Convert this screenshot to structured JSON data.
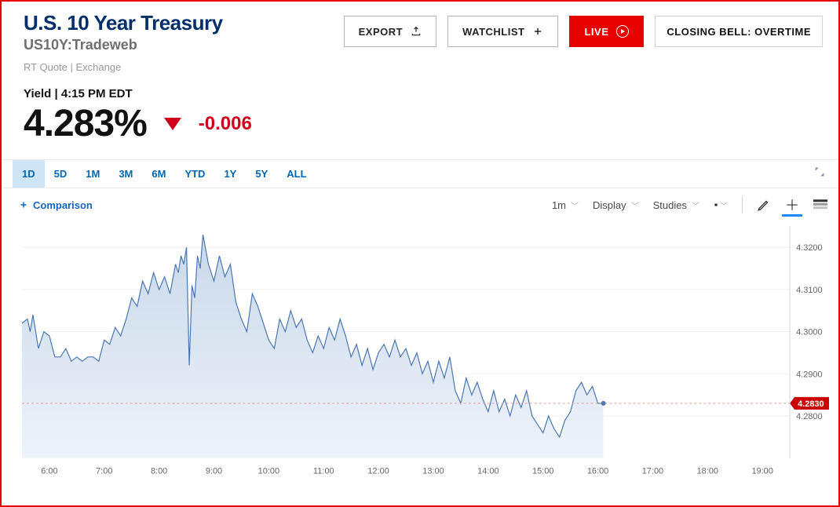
{
  "header": {
    "title": "U.S. 10 Year Treasury",
    "subtitle": "US10Y:Tradeweb",
    "meta": "RT Quote | Exchange"
  },
  "buttons": {
    "export": "EXPORT",
    "watchlist": "WATCHLIST",
    "live": "LIVE",
    "banner": "CLOSING BELL: OVERTIME"
  },
  "yield": {
    "label": "Yield | 4:15 PM EDT",
    "value": "4.283%",
    "delta": "-0.006",
    "direction": "down",
    "delta_color": "#d0021b"
  },
  "ranges": [
    "1D",
    "5D",
    "1M",
    "3M",
    "6M",
    "YTD",
    "1Y",
    "5Y",
    "ALL"
  ],
  "range_active": 0,
  "toolbar": {
    "comparison": "Comparison",
    "interval": "1m",
    "display": "Display",
    "studies": "Studies"
  },
  "chart": {
    "type": "area",
    "line_color": "#4a77b4",
    "fill_top": "#c9d8ea",
    "fill_bottom": "#eef3fa",
    "grid_color": "#efefef",
    "dash_color": "#e9a19a",
    "marker_color": "#cc0000",
    "marker_label": "4.2830",
    "ylim": [
      4.27,
      4.325
    ],
    "yticks": [
      4.28,
      4.29,
      4.3,
      4.31,
      4.32
    ],
    "ytick_labels": [
      "4.2800",
      "4.2900",
      "4.3000",
      "4.3100",
      "4.3200"
    ],
    "xlim": [
      5.5,
      19.5
    ],
    "xticks": [
      6,
      7,
      8,
      9,
      10,
      11,
      12,
      13,
      14,
      15,
      16,
      17,
      18,
      19
    ],
    "xtick_labels": [
      "6:00",
      "7:00",
      "8:00",
      "9:00",
      "10:00",
      "11:00",
      "12:00",
      "13:00",
      "14:00",
      "15:00",
      "16:00",
      "17:00",
      "18:00",
      "19:00"
    ],
    "current": 4.283,
    "series": [
      [
        5.5,
        4.302
      ],
      [
        5.6,
        4.303
      ],
      [
        5.65,
        4.3
      ],
      [
        5.7,
        4.304
      ],
      [
        5.8,
        4.296
      ],
      [
        5.9,
        4.3
      ],
      [
        6.0,
        4.299
      ],
      [
        6.1,
        4.294
      ],
      [
        6.2,
        4.294
      ],
      [
        6.3,
        4.296
      ],
      [
        6.4,
        4.293
      ],
      [
        6.5,
        4.294
      ],
      [
        6.6,
        4.293
      ],
      [
        6.7,
        4.294
      ],
      [
        6.8,
        4.294
      ],
      [
        6.9,
        4.293
      ],
      [
        7.0,
        4.298
      ],
      [
        7.1,
        4.297
      ],
      [
        7.2,
        4.301
      ],
      [
        7.3,
        4.299
      ],
      [
        7.4,
        4.303
      ],
      [
        7.5,
        4.308
      ],
      [
        7.6,
        4.306
      ],
      [
        7.7,
        4.312
      ],
      [
        7.8,
        4.309
      ],
      [
        7.9,
        4.314
      ],
      [
        8.0,
        4.31
      ],
      [
        8.1,
        4.313
      ],
      [
        8.2,
        4.309
      ],
      [
        8.3,
        4.316
      ],
      [
        8.35,
        4.314
      ],
      [
        8.4,
        4.318
      ],
      [
        8.45,
        4.316
      ],
      [
        8.5,
        4.32
      ],
      [
        8.55,
        4.292
      ],
      [
        8.6,
        4.311
      ],
      [
        8.65,
        4.308
      ],
      [
        8.7,
        4.318
      ],
      [
        8.75,
        4.315
      ],
      [
        8.8,
        4.323
      ],
      [
        8.9,
        4.316
      ],
      [
        9.0,
        4.312
      ],
      [
        9.1,
        4.318
      ],
      [
        9.2,
        4.313
      ],
      [
        9.3,
        4.316
      ],
      [
        9.4,
        4.307
      ],
      [
        9.5,
        4.303
      ],
      [
        9.6,
        4.3
      ],
      [
        9.7,
        4.309
      ],
      [
        9.8,
        4.306
      ],
      [
        9.9,
        4.302
      ],
      [
        10.0,
        4.298
      ],
      [
        10.1,
        4.296
      ],
      [
        10.2,
        4.303
      ],
      [
        10.3,
        4.3
      ],
      [
        10.4,
        4.305
      ],
      [
        10.5,
        4.301
      ],
      [
        10.6,
        4.303
      ],
      [
        10.7,
        4.298
      ],
      [
        10.8,
        4.295
      ],
      [
        10.9,
        4.299
      ],
      [
        11.0,
        4.296
      ],
      [
        11.1,
        4.301
      ],
      [
        11.2,
        4.298
      ],
      [
        11.3,
        4.303
      ],
      [
        11.4,
        4.299
      ],
      [
        11.5,
        4.294
      ],
      [
        11.6,
        4.297
      ],
      [
        11.7,
        4.292
      ],
      [
        11.8,
        4.296
      ],
      [
        11.9,
        4.291
      ],
      [
        12.0,
        4.295
      ],
      [
        12.1,
        4.297
      ],
      [
        12.2,
        4.294
      ],
      [
        12.3,
        4.298
      ],
      [
        12.4,
        4.294
      ],
      [
        12.5,
        4.296
      ],
      [
        12.6,
        4.292
      ],
      [
        12.7,
        4.295
      ],
      [
        12.8,
        4.29
      ],
      [
        12.9,
        4.293
      ],
      [
        13.0,
        4.288
      ],
      [
        13.1,
        4.293
      ],
      [
        13.2,
        4.289
      ],
      [
        13.3,
        4.294
      ],
      [
        13.4,
        4.286
      ],
      [
        13.5,
        4.283
      ],
      [
        13.6,
        4.289
      ],
      [
        13.7,
        4.285
      ],
      [
        13.8,
        4.288
      ],
      [
        13.9,
        4.284
      ],
      [
        14.0,
        4.281
      ],
      [
        14.1,
        4.286
      ],
      [
        14.2,
        4.281
      ],
      [
        14.3,
        4.284
      ],
      [
        14.4,
        4.28
      ],
      [
        14.5,
        4.285
      ],
      [
        14.6,
        4.282
      ],
      [
        14.7,
        4.286
      ],
      [
        14.8,
        4.28
      ],
      [
        14.9,
        4.278
      ],
      [
        15.0,
        4.276
      ],
      [
        15.1,
        4.28
      ],
      [
        15.2,
        4.277
      ],
      [
        15.3,
        4.275
      ],
      [
        15.4,
        4.279
      ],
      [
        15.5,
        4.281
      ],
      [
        15.6,
        4.286
      ],
      [
        15.7,
        4.288
      ],
      [
        15.8,
        4.285
      ],
      [
        15.9,
        4.287
      ],
      [
        16.0,
        4.283
      ],
      [
        16.1,
        4.283
      ]
    ]
  }
}
